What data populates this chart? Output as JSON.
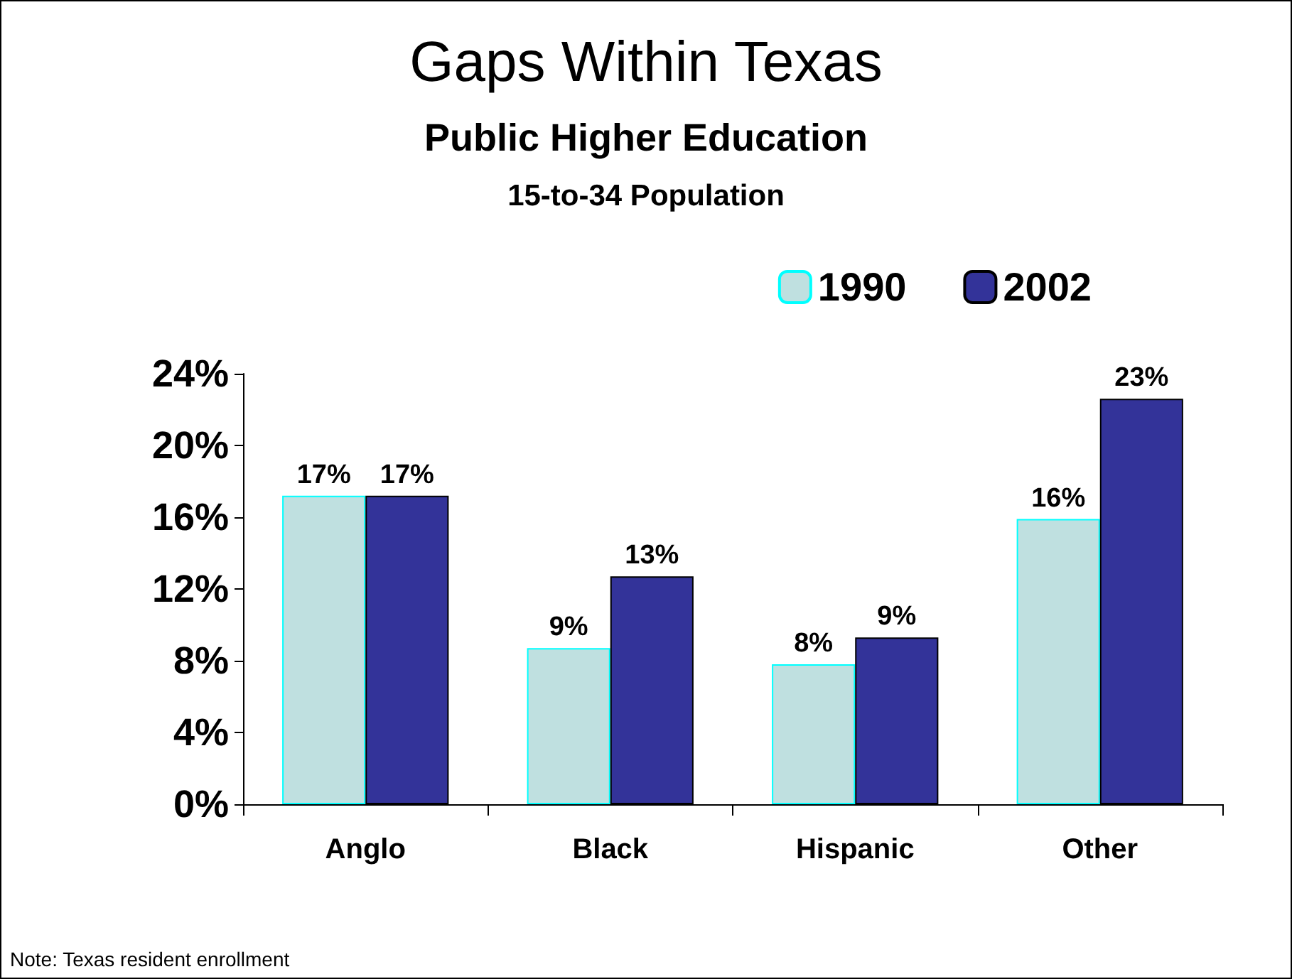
{
  "chart_data": {
    "type": "bar",
    "title": "Gaps Within Texas",
    "subtitle": "Public Higher Education\n15-to-34 Population",
    "categories": [
      "Anglo",
      "Black",
      "Hispanic",
      "Other"
    ],
    "series": [
      {
        "name": "1990",
        "color": "#bfe0e0",
        "values": [
          17.2,
          8.7,
          7.8,
          15.9
        ],
        "value_labels": [
          "17%",
          "9%",
          "8%",
          "16%"
        ]
      },
      {
        "name": "2002",
        "color": "#333399",
        "values": [
          17.2,
          12.7,
          9.3,
          22.6
        ],
        "value_labels": [
          "17%",
          "13%",
          "9%",
          "23%"
        ]
      }
    ],
    "ylim": [
      0,
      24
    ],
    "yticks": [
      {
        "value": 0,
        "label": "0%"
      },
      {
        "value": 4,
        "label": "4%"
      },
      {
        "value": 8,
        "label": "8%"
      },
      {
        "value": 12,
        "label": "12%"
      },
      {
        "value": 16,
        "label": "16%"
      },
      {
        "value": 20,
        "label": "20%"
      },
      {
        "value": 24,
        "label": "24%"
      }
    ],
    "grid": false,
    "legend": "top right",
    "annotations": [
      "Note: Texas resident enrollment"
    ]
  }
}
